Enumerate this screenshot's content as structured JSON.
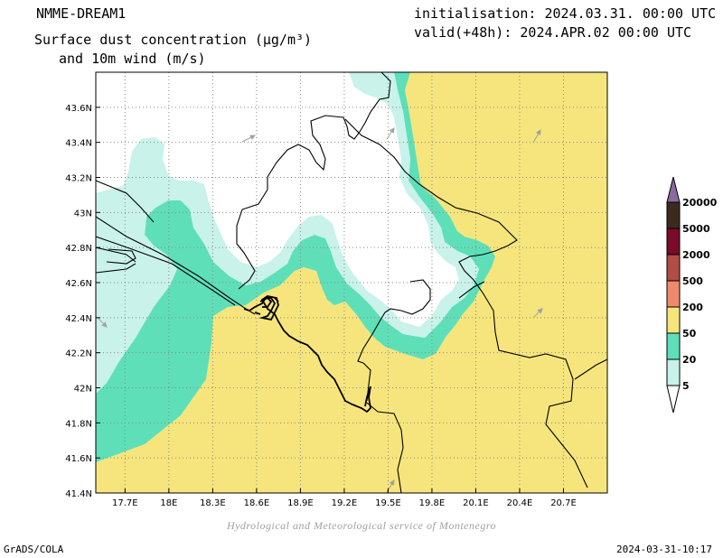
{
  "header": {
    "model": "NMME-DREAM1",
    "title_line1": "Surface dust concentration (µg/m³)",
    "title_line2": "and 10m wind (m/s)",
    "init": "initialisation: 2024.03.31. 00:00 UTC",
    "valid": "valid(+48h): 2024.APR.02 00:00 UTC"
  },
  "axes": {
    "lat_labels": [
      "43.6N",
      "43.4N",
      "43.2N",
      "43N",
      "42.8N",
      "42.6N",
      "42.4N",
      "42.2N",
      "42N",
      "41.8N",
      "41.6N",
      "41.4N"
    ],
    "lat_values": [
      43.6,
      43.4,
      43.2,
      43.0,
      42.8,
      42.6,
      42.4,
      42.2,
      42.0,
      41.8,
      41.6,
      41.4
    ],
    "lon_labels": [
      "17.7E",
      "18E",
      "18.3E",
      "18.6E",
      "18.9E",
      "19.2E",
      "19.5E",
      "19.8E",
      "20.1E",
      "20.4E",
      "20.7E"
    ],
    "lon_values": [
      17.7,
      18.0,
      18.3,
      18.6,
      18.9,
      19.2,
      19.5,
      19.8,
      20.1,
      20.4,
      20.7
    ],
    "lon_range": [
      17.5,
      21.0
    ],
    "lat_range": [
      41.4,
      43.8
    ],
    "grid": true
  },
  "legend": {
    "levels": [
      "20000",
      "5000",
      "2000",
      "500",
      "200",
      "50",
      "20",
      "5"
    ],
    "colors": [
      "#3c2a1e",
      "#7a0b2a",
      "#b04d45",
      "#ee8a6b",
      "#f6e57c",
      "#5fdfb8",
      "#c8f2ea",
      "#ffffff"
    ],
    "top_arrow_color": "#8a6aa0"
  },
  "credit": "Hydrological and Meteorological service of Montenegro",
  "footer": {
    "left": "GrADS/COLA",
    "right": "2024-03-31-10:17"
  },
  "colors": {
    "c5_20": "#c8f2ea",
    "c20_50": "#5fdfb8",
    "c50_200": "#f6e57c",
    "c200_500": "#ee8a6b",
    "wind_arrow": "#a0a0a0"
  }
}
